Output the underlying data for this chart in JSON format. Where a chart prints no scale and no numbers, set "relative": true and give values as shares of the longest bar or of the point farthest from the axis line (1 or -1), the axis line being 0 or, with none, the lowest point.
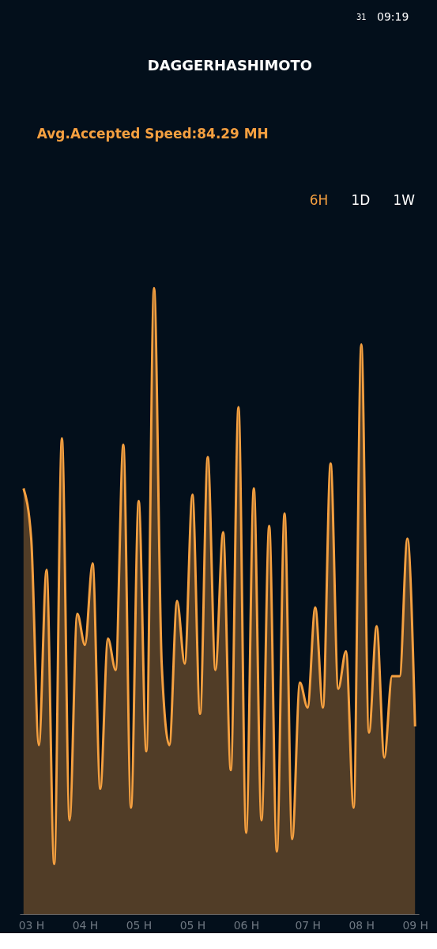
{
  "chart_data": {
    "type": "area",
    "title": "DAGGERHASHIMOTO",
    "subtitle": "Avg.Accepted Speed:84.29 MH",
    "annotations": [
      "6H",
      "1D",
      "1W",
      "09:19",
      "31"
    ],
    "relative": true,
    "grid": false,
    "tick_labels": "x",
    "categories": [
      null,
      "03 H",
      null,
      null,
      null,
      null,
      null,
      null,
      "04 H",
      null,
      null,
      null,
      null,
      null,
      null,
      "05 H",
      null,
      null,
      null,
      null,
      null,
      null,
      "05 H",
      null,
      null,
      null,
      null,
      null,
      null,
      "06 H",
      null,
      null,
      null,
      null,
      null,
      null,
      null,
      "07 H",
      null,
      null,
      null,
      null,
      null,
      null,
      "08 H",
      null,
      null,
      null,
      null,
      null,
      null,
      "09 H"
    ],
    "series": [
      {
        "color": "#f5a040",
        "values": [
          0.68,
          0.6,
          0.27,
          0.55,
          0.08,
          0.76,
          0.15,
          0.48,
          0.43,
          0.56,
          0.2,
          0.44,
          0.39,
          0.75,
          0.17,
          0.66,
          0.26,
          1.0,
          0.4,
          0.27,
          0.5,
          0.4,
          0.67,
          0.32,
          0.73,
          0.39,
          0.61,
          0.23,
          0.81,
          0.13,
          0.68,
          0.15,
          0.62,
          0.1,
          0.64,
          0.12,
          0.37,
          0.33,
          0.49,
          0.33,
          0.72,
          0.36,
          0.42,
          0.17,
          0.91,
          0.29,
          0.46,
          0.25,
          0.38,
          0.38,
          0.6,
          0.3
        ]
      }
    ]
  }
}
